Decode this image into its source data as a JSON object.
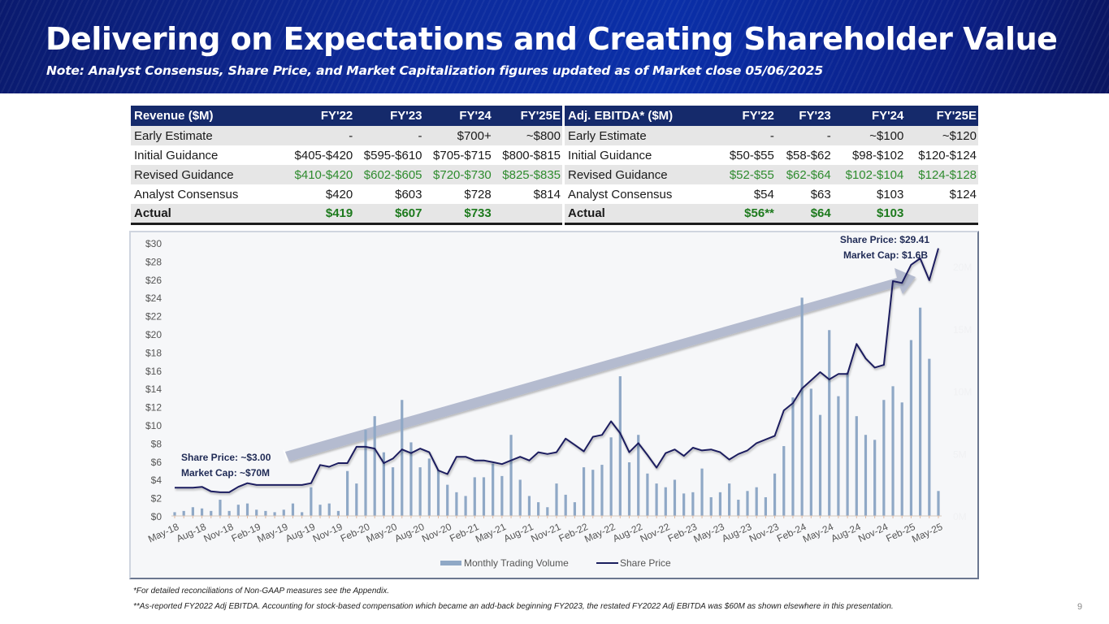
{
  "header": {
    "title": "Delivering on Expectations and Creating Shareholder Value",
    "subtitle": "Note: Analyst Consensus, Share Price, and Market Capitalization figures updated as of Market close 05/06/2025"
  },
  "revenue_table": {
    "headers": [
      "Revenue ($M)",
      "FY'22",
      "FY'23",
      "FY'24",
      "FY'25E"
    ],
    "rows": [
      {
        "label": "Early Estimate",
        "values": [
          "-",
          "-",
          "$700+",
          "~$800"
        ]
      },
      {
        "label": "Initial Guidance",
        "values": [
          "$405-$420",
          "$595-$610",
          "$705-$715",
          "$800-$815"
        ]
      },
      {
        "label": "Revised Guidance",
        "values": [
          "$410-$420",
          "$602-$605",
          "$720-$730",
          "$825-$835"
        ]
      },
      {
        "label": "Analyst Consensus",
        "values": [
          "$420",
          "$603",
          "$728",
          "$814"
        ]
      },
      {
        "label": "Actual",
        "values": [
          "$419",
          "$607",
          "$733",
          ""
        ]
      }
    ]
  },
  "ebitda_table": {
    "headers": [
      "Adj. EBITDA* ($M)",
      "FY'22",
      "FY'23",
      "FY'24",
      "FY'25E"
    ],
    "rows": [
      {
        "label": "Early Estimate",
        "values": [
          "-",
          "-",
          "~$100",
          "~$120"
        ]
      },
      {
        "label": "Initial Guidance",
        "values": [
          "$50-$55",
          "$58-$62",
          "$98-$102",
          "$120-$124"
        ]
      },
      {
        "label": "Revised Guidance",
        "values": [
          "$52-$55",
          "$62-$64",
          "$102-$104",
          "$124-$128"
        ]
      },
      {
        "label": "Analyst Consensus",
        "values": [
          "$54",
          "$63",
          "$103",
          "$124"
        ]
      },
      {
        "label": "Actual",
        "values": [
          "$56**",
          "$64",
          "$103",
          ""
        ]
      }
    ]
  },
  "colors": {
    "header_bg": "#152a6b",
    "green_revised": "#2e8b2e",
    "green_actual": "#1d7a1d",
    "price_line": "#1b1f5e",
    "volume_bar": "#8fa8c6",
    "arrow": "#a9b1c8"
  },
  "chart_data": {
    "type": "bar+line",
    "title": "",
    "annotations": [
      {
        "text": "Share Price: ~$3.00",
        "at": "start"
      },
      {
        "text": "Market Cap: ~$70M",
        "at": "start"
      },
      {
        "text": "Share Price: $29.41",
        "at": "end"
      },
      {
        "text": "Market Cap: $1.6B",
        "at": "end"
      }
    ],
    "legend": {
      "position": "bottom",
      "entries": [
        "Monthly Trading Volume",
        "Share Price"
      ]
    },
    "y_left": {
      "label": "",
      "range": [
        0,
        30
      ],
      "ticks": [
        "$0",
        "$2",
        "$4",
        "$6",
        "$8",
        "$10",
        "$12",
        "$14",
        "$16",
        "$18",
        "$20",
        "$22",
        "$24",
        "$26",
        "$28",
        "$30"
      ]
    },
    "y_right": {
      "label": "",
      "range_millions": [
        0,
        20
      ],
      "ticks": [
        "0M",
        "5M",
        "10M",
        "15M",
        "20M"
      ]
    },
    "x_tick_labels": [
      "May-18",
      "Aug-18",
      "Nov-18",
      "Feb-19",
      "May-19",
      "Aug-19",
      "Nov-19",
      "Feb-20",
      "May-20",
      "Aug-20",
      "Nov-20",
      "Feb-21",
      "May-21",
      "Aug-21",
      "Nov-21",
      "Feb-22",
      "May-22",
      "Aug-22",
      "Nov-22",
      "Feb-23",
      "May-23",
      "Aug-23",
      "Nov-23",
      "Feb-24",
      "May-24",
      "Aug-24",
      "Nov-24",
      "Feb-25",
      "May-25"
    ],
    "months_count": 85,
    "series": [
      {
        "name": "Share Price",
        "type": "line",
        "unit": "USD",
        "values": [
          3.1,
          3.1,
          3.1,
          3.2,
          2.7,
          2.6,
          2.6,
          3.2,
          3.6,
          3.4,
          3.4,
          3.4,
          3.4,
          3.4,
          3.4,
          3.6,
          5.6,
          5.4,
          5.8,
          5.8,
          7.6,
          7.6,
          7.4,
          5.8,
          6.3,
          7.3,
          6.9,
          7.4,
          7.0,
          5.0,
          4.6,
          6.5,
          6.5,
          6.1,
          6.1,
          5.9,
          5.7,
          6.1,
          6.5,
          6.1,
          7.0,
          6.8,
          7.0,
          8.5,
          7.8,
          7.1,
          8.7,
          8.9,
          10.4,
          9.1,
          7.0,
          8.0,
          6.7,
          5.3,
          6.9,
          7.3,
          6.6,
          7.5,
          7.2,
          7.3,
          7.0,
          6.2,
          6.8,
          7.2,
          8.0,
          8.4,
          8.8,
          11.6,
          12.4,
          14.0,
          14.9,
          15.8,
          15.0,
          15.6,
          15.6,
          18.9,
          17.3,
          16.3,
          16.6,
          25.8,
          25.6,
          27.6,
          28.3,
          25.9,
          29.41
        ]
      },
      {
        "name": "Monthly Trading Volume",
        "type": "bar",
        "unit": "millions of shares",
        "values": [
          0.3,
          0.4,
          0.7,
          0.6,
          0.4,
          1.3,
          0.4,
          0.9,
          1.0,
          0.5,
          0.4,
          0.3,
          0.5,
          1.0,
          0.3,
          2.3,
          0.9,
          1.0,
          0.4,
          3.6,
          2.6,
          6.9,
          8.0,
          5.1,
          3.9,
          9.3,
          5.9,
          3.9,
          4.6,
          3.7,
          2.5,
          1.9,
          1.6,
          3.1,
          3.1,
          4.2,
          3.2,
          6.5,
          2.9,
          1.6,
          1.1,
          0.7,
          2.6,
          1.7,
          1.1,
          3.9,
          3.7,
          4.1,
          6.3,
          11.2,
          4.3,
          6.5,
          3.4,
          2.6,
          2.3,
          2.9,
          1.8,
          1.9,
          3.8,
          1.5,
          1.9,
          2.6,
          1.3,
          2.0,
          2.3,
          1.5,
          3.4,
          5.6,
          9.5,
          17.5,
          10.2,
          8.1,
          14.9,
          9.6,
          11.5,
          8.0,
          6.5,
          6.1,
          9.3,
          10.4,
          9.1,
          14.1,
          16.7,
          12.6,
          2.0
        ]
      }
    ]
  },
  "footnotes": {
    "note1": "*For detailed reconciliations of Non-GAAP measures see the Appendix.",
    "note2": "**As-reported FY2022 Adj EBITDA. Accounting for stock-based compensation which became an add-back beginning FY2023, the restated FY2022 Adj EBITDA was $60M as shown elsewhere in this presentation.",
    "page_number": "9"
  }
}
